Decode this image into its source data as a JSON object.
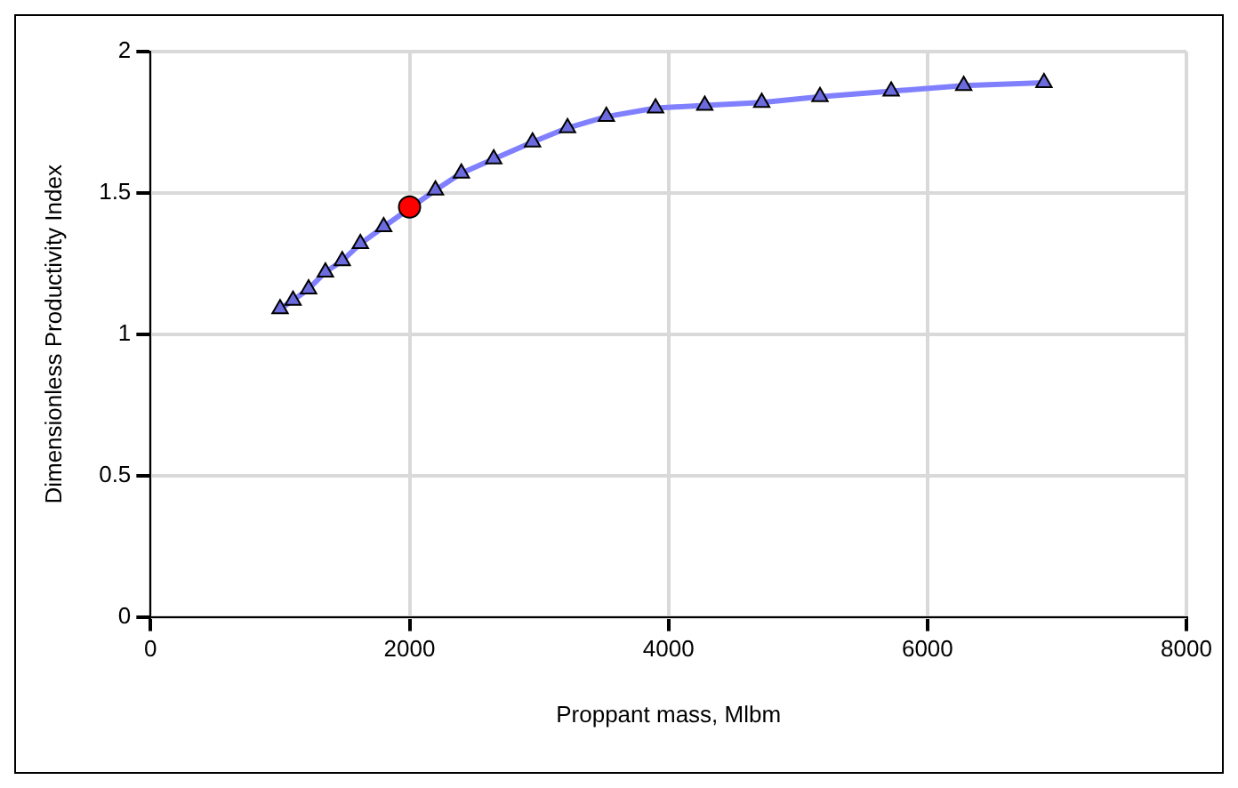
{
  "chart_data": {
    "type": "line",
    "xlabel": "Proppant mass, Mlbm",
    "ylabel": "Dimensionless Productivity Index",
    "xlim": [
      0,
      8000
    ],
    "xticks": [
      0,
      2000,
      4000,
      6000,
      8000
    ],
    "ylim": [
      0,
      2
    ],
    "yticks": [
      0,
      0.5,
      1,
      1.5,
      2
    ],
    "grid": true,
    "legend": false,
    "marker": "triangle",
    "line_style": "solid",
    "series": [
      {
        "type": "line",
        "color": "#8080ff",
        "x": [
          1000,
          1100,
          1220,
          1350,
          1480,
          1620,
          1800,
          2200,
          2400,
          2650,
          2950,
          3220,
          3520,
          3900,
          4280,
          4720,
          5170,
          5720,
          6280,
          6900
        ],
        "values": [
          1.09,
          1.12,
          1.16,
          1.22,
          1.26,
          1.32,
          1.38,
          1.51,
          1.57,
          1.62,
          1.68,
          1.73,
          1.77,
          1.8,
          1.81,
          1.82,
          1.84,
          1.86,
          1.88,
          1.89
        ]
      },
      {
        "type": "scatter",
        "color": "#ff0000",
        "marker": "circle",
        "x": [
          2000
        ],
        "values": [
          1.45
        ]
      }
    ]
  }
}
